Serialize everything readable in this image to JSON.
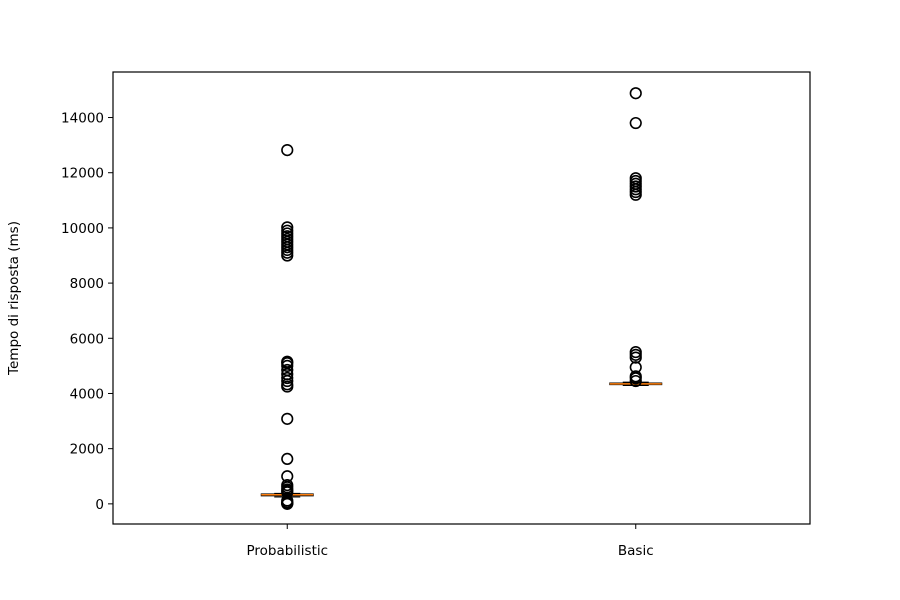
{
  "chart_data": {
    "type": "boxplot",
    "title": "",
    "xlabel": "",
    "ylabel": "Tempo di risposta (ms)",
    "categories": [
      "Probabilistic",
      "Basic"
    ],
    "ylim": [
      -730,
      15650
    ],
    "yticks": [
      0,
      2000,
      4000,
      6000,
      8000,
      10000,
      12000,
      14000
    ],
    "grid": false,
    "legend": "none",
    "colors": {
      "box": "#000000",
      "median": "#ff7f0e",
      "outlier_edge": "#000000",
      "axis": "#000000"
    },
    "series": [
      {
        "category": "Probabilistic",
        "whisker_low": 250,
        "q1": 290,
        "median": 330,
        "q3": 360,
        "whisker_high": 380,
        "outliers": [
          0,
          10,
          30,
          60,
          120,
          420,
          470,
          520,
          600,
          680,
          1000,
          1630,
          3080,
          4250,
          4330,
          4450,
          4560,
          4700,
          4850,
          5000,
          5100,
          5150,
          9000,
          9100,
          9200,
          9300,
          9400,
          9500,
          9600,
          9700,
          9800,
          9900,
          10020,
          12820
        ]
      },
      {
        "category": "Basic",
        "whisker_low": 4290,
        "q1": 4320,
        "median": 4350,
        "q3": 4380,
        "whisker_high": 4410,
        "outliers": [
          4450,
          4550,
          4620,
          4950,
          5300,
          5400,
          5500,
          11200,
          11300,
          11400,
          11500,
          11600,
          11700,
          11800,
          13800,
          14880
        ]
      }
    ]
  }
}
